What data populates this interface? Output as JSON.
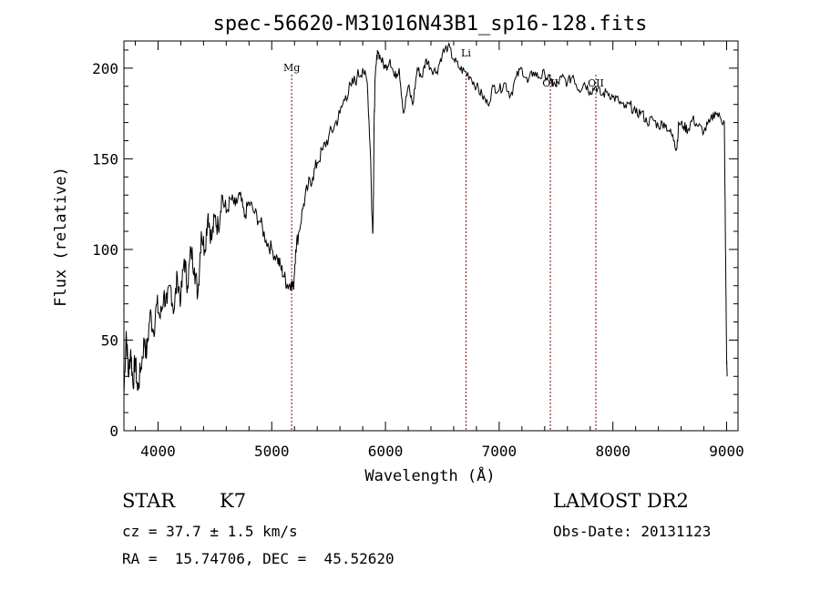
{
  "chart_data": {
    "type": "line",
    "title": "spec-56620-M31016N43B1_sp16-128.fits",
    "xlabel": "Wavelength (Å)",
    "ylabel": "Flux (relative)",
    "xlim": [
      3700,
      9100
    ],
    "ylim": [
      0,
      215
    ],
    "xticks": [
      4000,
      5000,
      6000,
      7000,
      8000,
      9000
    ],
    "yticks": [
      0,
      50,
      100,
      150,
      200
    ],
    "grid": false,
    "line_color": "#000000",
    "marker_color": "#8b0000",
    "series": [
      {
        "x": [
          3700,
          3720,
          3740,
          3760,
          3780,
          3800,
          3820,
          3850,
          3880,
          3900,
          3930,
          3960,
          3990,
          4020,
          4050,
          4080,
          4110,
          4140,
          4170,
          4200,
          4230,
          4260,
          4290,
          4320,
          4350,
          4380,
          4410,
          4440,
          4470,
          4500,
          4530,
          4560,
          4600,
          4640,
          4680,
          4720,
          4760,
          4800,
          4850,
          4900,
          4950,
          5000,
          5050,
          5080,
          5110,
          5140,
          5170,
          5190,
          5210,
          5240,
          5280,
          5320,
          5360,
          5400,
          5450,
          5500,
          5550,
          5600,
          5650,
          5700,
          5750,
          5800,
          5840,
          5870,
          5880,
          5890,
          5895,
          5900,
          5910,
          5930,
          5960,
          6000,
          6040,
          6080,
          6120,
          6160,
          6200,
          6240,
          6280,
          6320,
          6360,
          6400,
          6450,
          6500,
          6550,
          6600,
          6650,
          6700,
          6750,
          6800,
          6850,
          6900,
          6950,
          7000,
          7050,
          7100,
          7150,
          7200,
          7250,
          7300,
          7350,
          7400,
          7450,
          7500,
          7550,
          7600,
          7650,
          7700,
          7750,
          7800,
          7850,
          7900,
          7950,
          8000,
          8050,
          8100,
          8150,
          8200,
          8250,
          8300,
          8350,
          8400,
          8450,
          8500,
          8540,
          8560,
          8580,
          8620,
          8660,
          8700,
          8750,
          8800,
          8850,
          8900,
          8950,
          8980,
          8990,
          9000,
          9005
        ],
        "y": [
          20,
          55,
          30,
          45,
          25,
          40,
          22,
          35,
          50,
          42,
          65,
          55,
          70,
          62,
          75,
          70,
          80,
          66,
          85,
          72,
          95,
          80,
          100,
          90,
          75,
          110,
          100,
          120,
          105,
          118,
          112,
          130,
          120,
          128,
          124,
          130,
          118,
          126,
          120,
          115,
          105,
          100,
          95,
          90,
          85,
          80,
          82,
          78,
          100,
          110,
          125,
          135,
          140,
          148,
          155,
          162,
          168,
          175,
          185,
          190,
          195,
          200,
          192,
          150,
          120,
          110,
          135,
          170,
          195,
          210,
          205,
          200,
          205,
          195,
          200,
          175,
          190,
          180,
          200,
          195,
          205,
          200,
          198,
          208,
          212,
          205,
          200,
          198,
          195,
          190,
          185,
          180,
          190,
          188,
          192,
          185,
          195,
          200,
          192,
          198,
          195,
          197,
          193,
          190,
          195,
          192,
          196,
          188,
          192,
          187,
          190,
          185,
          187,
          184,
          182,
          178,
          180,
          175,
          176,
          170,
          172,
          168,
          170,
          165,
          160,
          155,
          170,
          168,
          166,
          172,
          168,
          165,
          170,
          176,
          172,
          170,
          100,
          40,
          30
        ],
        "x_line_note": ""
      }
    ],
    "lines": [
      {
        "label": "Mg",
        "x": 5175
      },
      {
        "label": "Li",
        "x": 6708
      },
      {
        "label": "OII",
        "x": 7450
      },
      {
        "label": "OII",
        "x": 7850
      }
    ]
  },
  "info": {
    "object_class": "STAR",
    "subclass": "K7",
    "survey": "LAMOST DR2",
    "redshift": "cz = 37.7 ± 1.5 km/s",
    "obs_date": "Obs-Date: 20131123",
    "coords": "RA =  15.74706, DEC =  45.52620"
  }
}
